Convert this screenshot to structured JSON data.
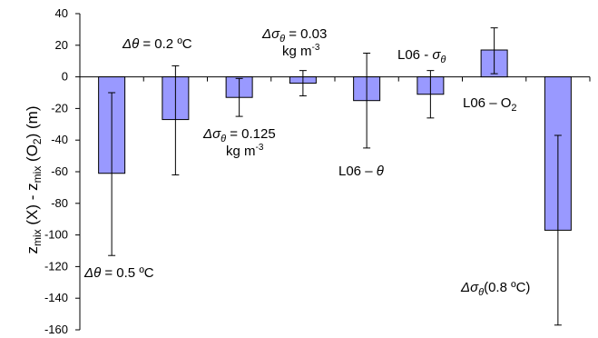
{
  "chart_data": {
    "type": "bar",
    "ylabel": {
      "main": "z",
      "sub1": "mix",
      "part2": " (X) - z",
      "sub2": "mix",
      "part3": " (O",
      "sub3": "2",
      "part4": ") (m)"
    },
    "ylim": [
      -160,
      40
    ],
    "yticks": [
      40,
      20,
      0,
      -20,
      -40,
      -60,
      -80,
      -100,
      -120,
      -140,
      -160
    ],
    "grid": false,
    "legend": "none",
    "bar_color": "#9999ff",
    "bar_edge_color": "#000000",
    "bars": [
      {
        "value": -61,
        "err_low": -113,
        "err_high": -10
      },
      {
        "value": -27,
        "err_low": -62,
        "err_high": 7
      },
      {
        "value": -13,
        "err_low": -25,
        "err_high": -1
      },
      {
        "value": -4,
        "err_low": -12,
        "err_high": 4
      },
      {
        "value": -15,
        "err_low": -45,
        "err_high": 15
      },
      {
        "value": -11,
        "err_low": -26,
        "err_high": 4
      },
      {
        "value": 17,
        "err_low": 2,
        "err_high": 31
      },
      {
        "value": -97,
        "err_low": -157,
        "err_high": -37
      }
    ],
    "annotations": [
      {
        "greek": "Δθ",
        "greek_sub": "",
        "text": " = 0.5 ºC",
        "line2": ""
      },
      {
        "greek": "Δθ",
        "greek_sub": "",
        "text": " = 0.2 ºC",
        "line2": ""
      },
      {
        "greek": "Δσ",
        "greek_sub": "θ",
        "text": " = 0.125",
        "line2": "kg m",
        "line2_sup": "-3"
      },
      {
        "greek": "Δσ",
        "greek_sub": "θ",
        "text": " = 0.03",
        "line2": "kg m",
        "line2_sup": "-3"
      },
      {
        "prefix": "L06 – ",
        "greek": "θ",
        "greek_sub": "",
        "text": ""
      },
      {
        "prefix": "L06 - ",
        "greek": "σ",
        "greek_sub": "θ",
        "text": ""
      },
      {
        "prefix": "L06 – O",
        "sub": "2"
      },
      {
        "greek": "Δσ",
        "greek_sub": "θ",
        "text": "(0.8 ºC)"
      }
    ]
  }
}
